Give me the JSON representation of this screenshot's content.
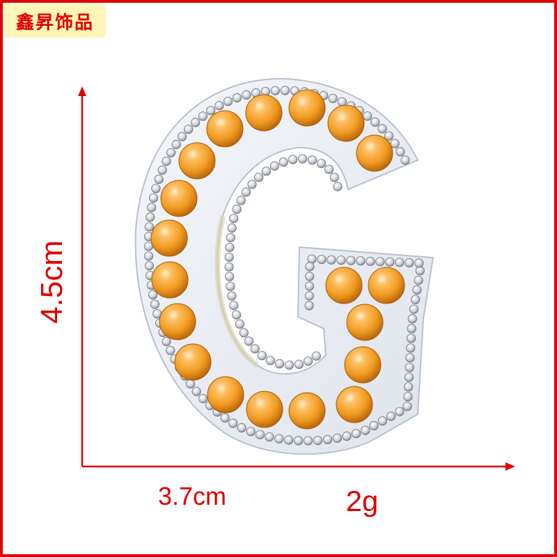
{
  "brand": {
    "name": "鑫昇饰品"
  },
  "dimensions": {
    "height": "4.5cm",
    "width": "3.7cm",
    "weight": "2g"
  },
  "colors": {
    "frame": "#e00000",
    "brand_background": "#fff5b8",
    "pearl": "#ef9a1f",
    "felt": "#e9eef6",
    "rhinestone": "#c8cbd0"
  },
  "product": {
    "shape": "letter-G",
    "decoration": [
      "orange-pearls",
      "rhinestones"
    ]
  }
}
